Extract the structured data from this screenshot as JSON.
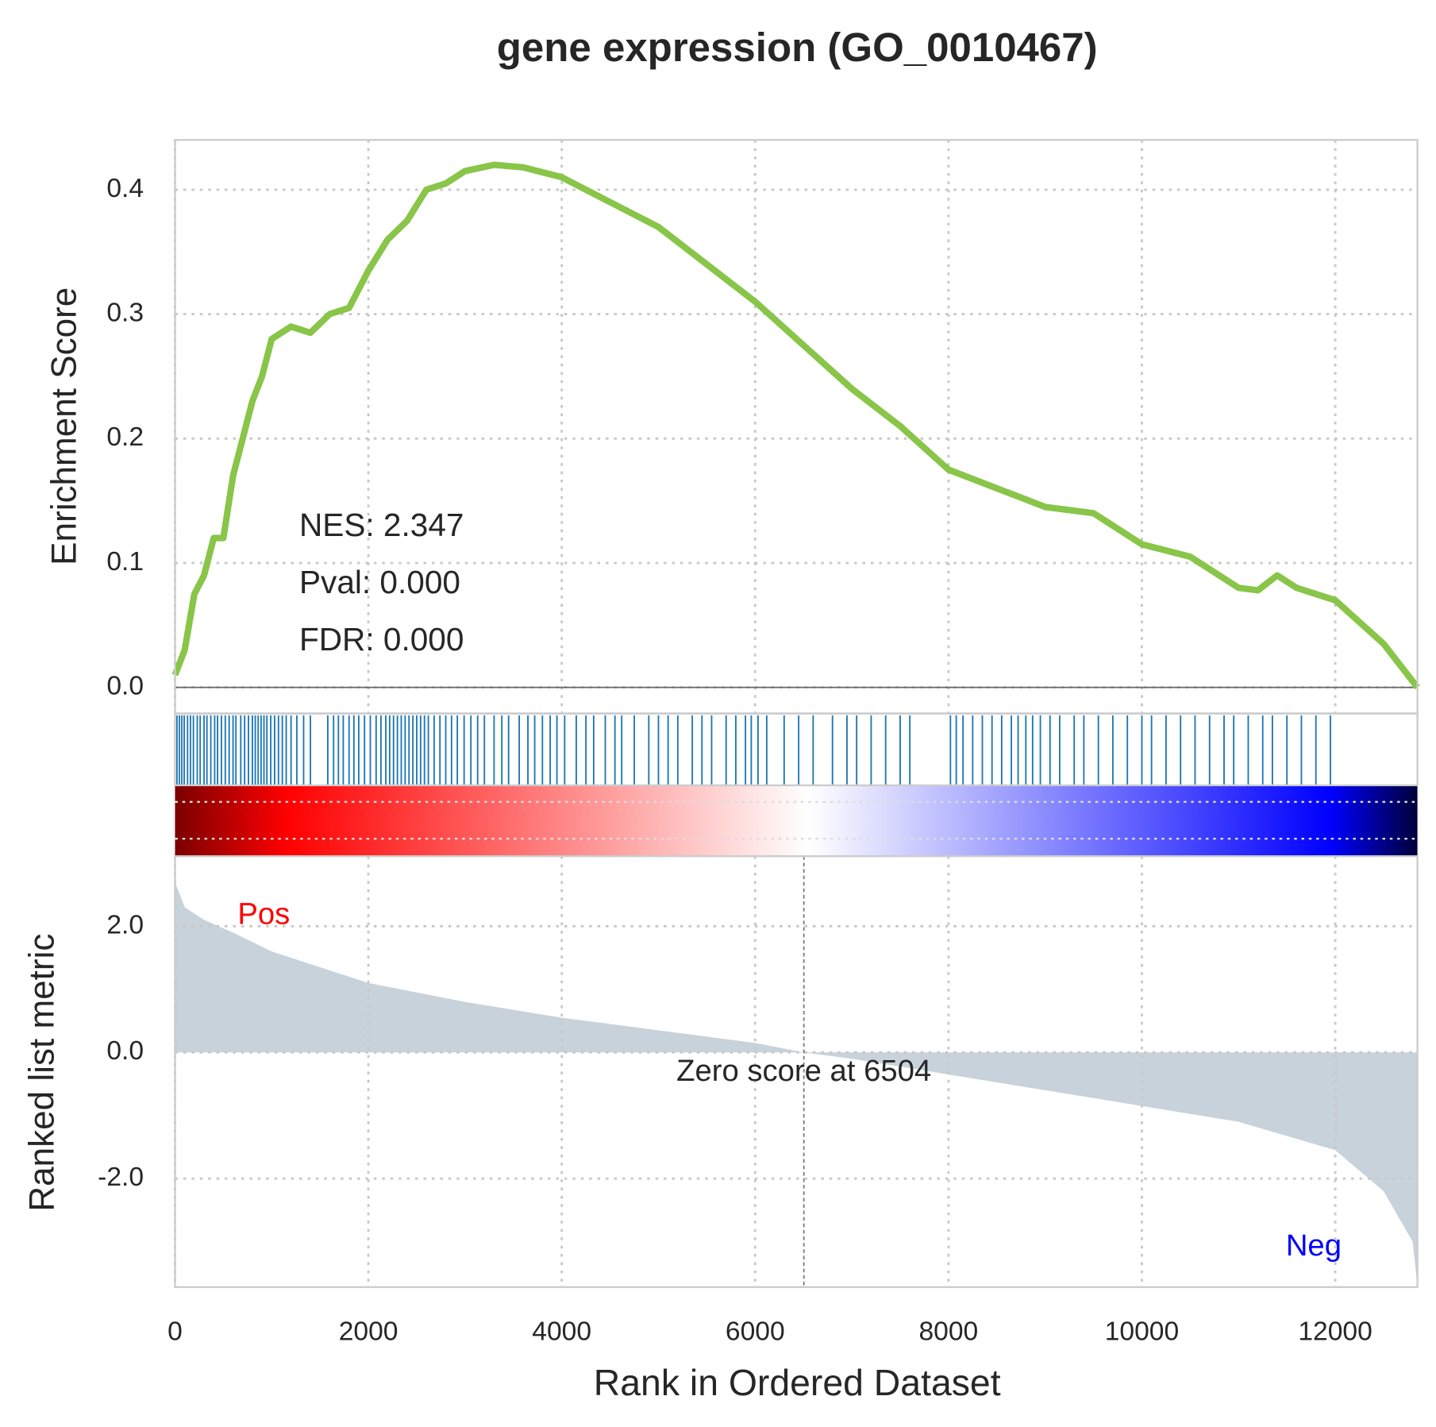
{
  "chart_data": [
    {
      "type": "line",
      "title": "gene expression (GO_0010467)",
      "ylabel": "Enrichment Score",
      "x": [
        0,
        100,
        200,
        300,
        400,
        500,
        600,
        700,
        800,
        900,
        1000,
        1100,
        1200,
        1400,
        1600,
        1800,
        2000,
        2200,
        2400,
        2600,
        2800,
        3000,
        3300,
        3600,
        4000,
        4500,
        5000,
        5500,
        6000,
        6500,
        7000,
        7500,
        8000,
        8500,
        9000,
        9500,
        10000,
        10500,
        11000,
        11200,
        11400,
        11600,
        12000,
        12500,
        12850
      ],
      "values": [
        0.01,
        0.03,
        0.075,
        0.09,
        0.12,
        0.12,
        0.17,
        0.2,
        0.23,
        0.25,
        0.28,
        0.285,
        0.29,
        0.285,
        0.3,
        0.305,
        0.335,
        0.36,
        0.375,
        0.4,
        0.405,
        0.415,
        0.42,
        0.418,
        0.41,
        0.39,
        0.37,
        0.34,
        0.31,
        0.275,
        0.24,
        0.21,
        0.175,
        0.16,
        0.145,
        0.14,
        0.115,
        0.105,
        0.08,
        0.078,
        0.09,
        0.08,
        0.07,
        0.035,
        0.0
      ],
      "color": "#88c548",
      "xlim": [
        0,
        12850
      ],
      "xticks": [
        0,
        2000,
        4000,
        6000,
        8000,
        10000,
        12000
      ],
      "ylim": [
        -0.021,
        0.44
      ],
      "yticks": [
        {
          "value": 0,
          "label": "0.0"
        },
        0.1,
        0.2,
        0.3,
        0.4
      ],
      "annotations": [
        "NES: 2.347",
        "Pval: 0.000",
        "FDR: 0.000"
      ],
      "grid": true
    },
    {
      "type": "barcode",
      "color": "#1f77b4",
      "xlim": [
        0,
        12850
      ],
      "x": [
        20,
        45,
        70,
        95,
        130,
        160,
        190,
        230,
        260,
        300,
        330,
        370,
        410,
        440,
        480,
        520,
        560,
        600,
        630,
        680,
        720,
        760,
        800,
        830,
        860,
        890,
        920,
        950,
        990,
        1030,
        1070,
        1110,
        1150,
        1200,
        1260,
        1330,
        1400,
        1580,
        1640,
        1690,
        1740,
        1800,
        1850,
        1900,
        1960,
        2020,
        2080,
        2130,
        2180,
        2220,
        2260,
        2300,
        2340,
        2380,
        2420,
        2460,
        2500,
        2540,
        2580,
        2620,
        2680,
        2740,
        2800,
        2860,
        2920,
        2990,
        3060,
        3130,
        3200,
        3300,
        3380,
        3450,
        3560,
        3650,
        3720,
        3800,
        3880,
        3950,
        4030,
        4150,
        4250,
        4330,
        4450,
        4550,
        4620,
        4750,
        4900,
        5000,
        5100,
        5200,
        5350,
        5450,
        5550,
        5700,
        5800,
        5900,
        5960,
        6030,
        6120,
        6300,
        6450,
        6600,
        6800,
        6950,
        7050,
        7200,
        7350,
        7500,
        7600,
        8020,
        8080,
        8150,
        8250,
        8350,
        8450,
        8550,
        8650,
        8720,
        8800,
        8870,
        8950,
        9050,
        9150,
        9300,
        9400,
        9550,
        9700,
        9850,
        10000,
        10100,
        10250,
        10400,
        10550,
        10700,
        10850,
        10950,
        11100,
        11250,
        11350,
        11500,
        11650,
        11800,
        11950
      ]
    },
    {
      "type": "area",
      "ylabel": "Ranked list metric",
      "xlabel": "Rank in Ordered Dataset",
      "x": [
        0,
        100,
        300,
        600,
        1000,
        2000,
        3000,
        4000,
        5000,
        6000,
        6504,
        7000,
        8000,
        9000,
        10000,
        11000,
        12000,
        12500,
        12800,
        12850
      ],
      "values": [
        2.7,
        2.3,
        2.1,
        1.9,
        1.6,
        1.1,
        0.8,
        0.55,
        0.35,
        0.15,
        0,
        -0.1,
        -0.35,
        -0.6,
        -0.85,
        -1.1,
        -1.55,
        -2.2,
        -3.0,
        -3.7
      ],
      "color": "#c8d2da",
      "xlim": [
        0,
        12850
      ],
      "xticks": [
        0,
        2000,
        4000,
        6000,
        8000,
        10000,
        12000
      ],
      "ylim": [
        -3.72,
        3.11
      ],
      "yticks": [
        {
          "value": 2,
          "label": "2.0"
        },
        {
          "value": 0,
          "label": "0.0"
        },
        {
          "value": -2,
          "label": "-2.0"
        }
      ],
      "pos_label": "Pos",
      "pos_color": "red",
      "neg_label": "Neg",
      "neg_color": "blue",
      "zero_rank": 6504,
      "zero_label": "Zero score at 6504",
      "grid": true
    }
  ]
}
